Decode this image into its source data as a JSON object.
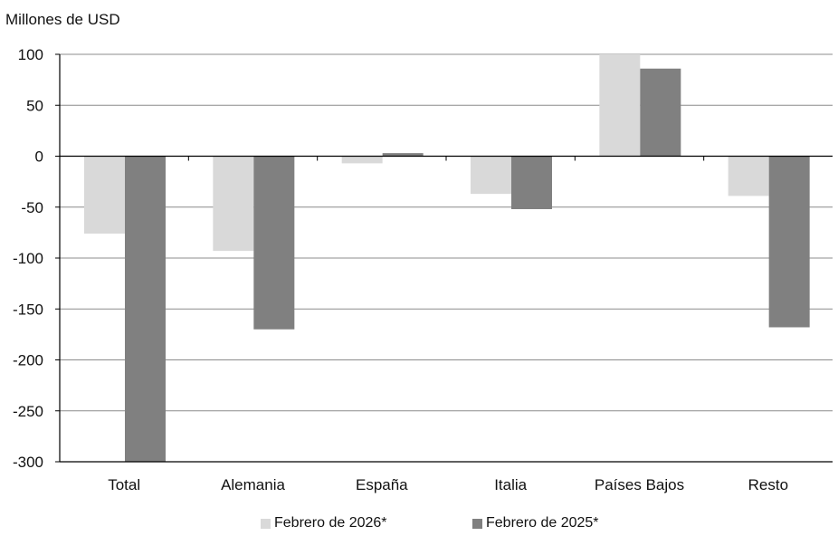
{
  "chart_data": {
    "type": "bar",
    "unit_label": "Millones de USD",
    "categories": [
      "Total",
      "Alemania",
      "España",
      "Italia",
      "Países Bajos",
      "Resto"
    ],
    "series": [
      {
        "name": "Febrero de 2026*",
        "color": "#d9d9d9",
        "values": [
          -76,
          -93,
          -7,
          -37,
          100,
          -39
        ]
      },
      {
        "name": "Febrero de 2025*",
        "color": "#808080",
        "values": [
          -300,
          -170,
          3,
          -52,
          86,
          -168
        ]
      }
    ],
    "ylim": [
      -300,
      100
    ],
    "yticks": [
      100,
      50,
      0,
      -50,
      -100,
      -150,
      -200,
      -250,
      -300
    ],
    "ytick_labels": [
      "100",
      "50",
      "0",
      "-50",
      "-100",
      "-150",
      "-200",
      "-250",
      "-300"
    ],
    "grid": true,
    "legend_position": "bottom"
  }
}
